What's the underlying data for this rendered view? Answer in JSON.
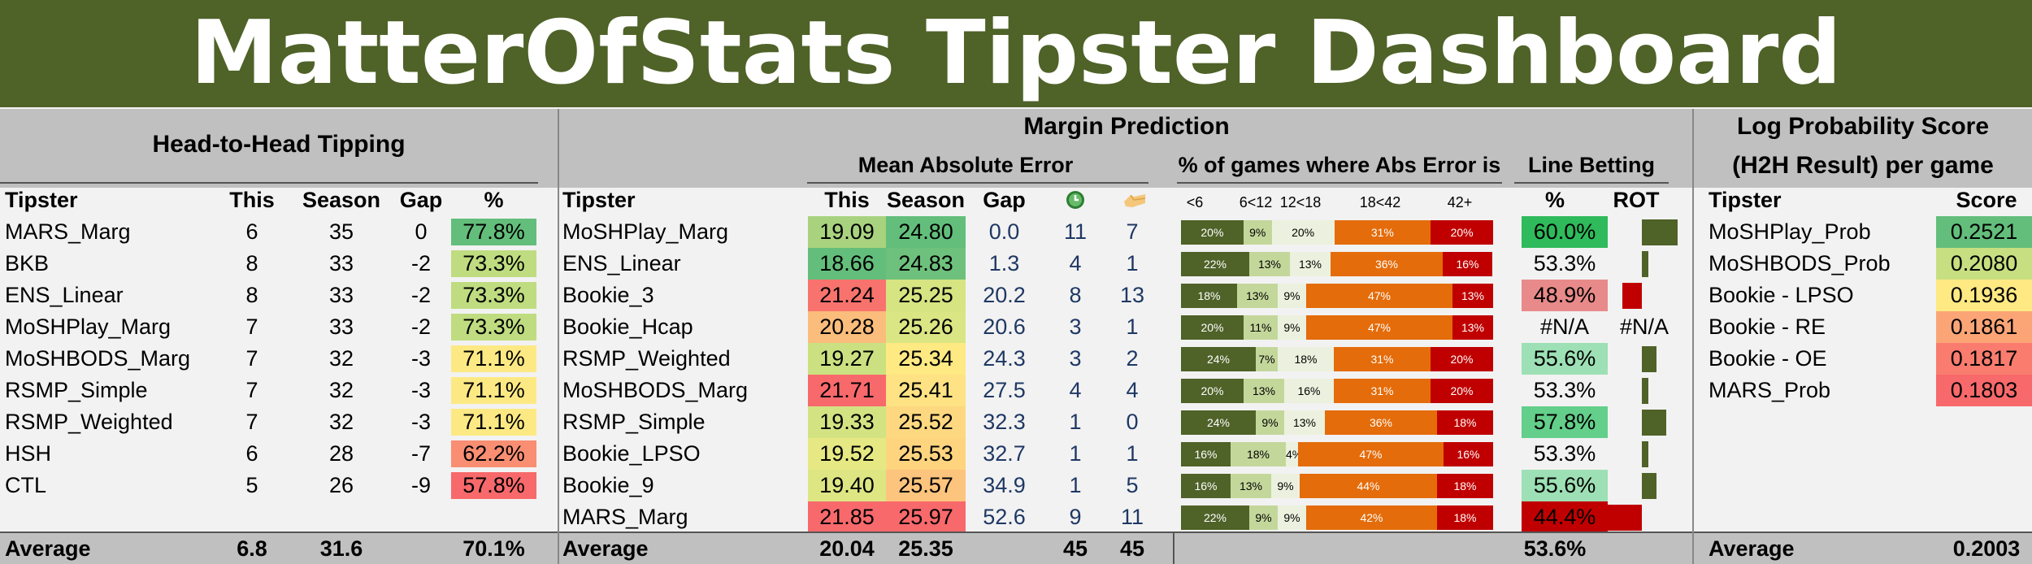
{
  "title": "MatterOfStats Tipster Dashboard",
  "colors": {
    "banner": "#4f6228",
    "band": "#c0c0c0",
    "dark_green": "#4f6228",
    "orange": "#e46c0a",
    "red": "#c00000"
  },
  "h2h": {
    "title": "Head-to-Head Tipping",
    "headers": {
      "tipster": "Tipster",
      "this": "This",
      "season": "Season",
      "gap": "Gap",
      "pct": "%"
    },
    "rows": [
      {
        "tipster": "MARS_Marg",
        "this": "6",
        "season": "35",
        "gap": "0",
        "pct": "77.8%",
        "color": "#63be7b"
      },
      {
        "tipster": "BKB",
        "this": "8",
        "season": "33",
        "gap": "-2",
        "pct": "73.3%",
        "color": "#bfdc80"
      },
      {
        "tipster": "ENS_Linear",
        "this": "8",
        "season": "33",
        "gap": "-2",
        "pct": "73.3%",
        "color": "#bfdc80"
      },
      {
        "tipster": "MoSHPlay_Marg",
        "this": "7",
        "season": "33",
        "gap": "-2",
        "pct": "73.3%",
        "color": "#bfdc80"
      },
      {
        "tipster": "MoSHBODS_Marg",
        "this": "7",
        "season": "32",
        "gap": "-3",
        "pct": "71.1%",
        "color": "#fde983"
      },
      {
        "tipster": "RSMP_Simple",
        "this": "7",
        "season": "32",
        "gap": "-3",
        "pct": "71.1%",
        "color": "#fde983"
      },
      {
        "tipster": "RSMP_Weighted",
        "this": "7",
        "season": "32",
        "gap": "-3",
        "pct": "71.1%",
        "color": "#fde983"
      },
      {
        "tipster": "HSH",
        "this": "6",
        "season": "28",
        "gap": "-7",
        "pct": "62.2%",
        "color": "#f98e72"
      },
      {
        "tipster": "CTL",
        "this": "5",
        "season": "26",
        "gap": "-9",
        "pct": "57.8%",
        "color": "#f8696b"
      }
    ],
    "average": {
      "label": "Average",
      "this": "6.8",
      "season": "31.6",
      "pct": "70.1%"
    }
  },
  "margin": {
    "title": "Margin Prediction",
    "mae_title": "Mean Absolute Error",
    "dist_title": "% of games where Abs Error is",
    "line_title": "Line Betting",
    "headers": {
      "tipster": "Tipster",
      "this": "This",
      "season": "Season",
      "gap": "Gap",
      "b1": "<6",
      "b2": "6<12",
      "b3": "12<18",
      "b4": "18<42",
      "b5": "42+",
      "pct": "%",
      "rot": "ROT"
    },
    "rows": [
      {
        "tipster": "MoSHPlay_Marg",
        "this": "19.09",
        "season": "24.80",
        "gap": "0.0",
        "c1": "11",
        "c2": "7",
        "dist": [
          "20%",
          "9%",
          "20%",
          "31%",
          "20%"
        ],
        "dist_v": [
          20,
          9,
          20,
          31,
          20
        ],
        "line_pct": "60.0%",
        "rot_v": 0.55,
        "this_color": "#a9d27f",
        "season_color": "#63be7b",
        "pct_color": "#2fba5b"
      },
      {
        "tipster": "ENS_Linear",
        "this": "18.66",
        "season": "24.83",
        "gap": "1.3",
        "c1": "4",
        "c2": "1",
        "dist": [
          "22%",
          "13%",
          "13%",
          "36%",
          "16%"
        ],
        "dist_v": [
          22,
          13,
          13,
          36,
          16
        ],
        "line_pct": "53.3%",
        "rot_v": 0.1,
        "this_color": "#63be7b",
        "season_color": "#6ec17c",
        "pct_color": ""
      },
      {
        "tipster": "Bookie_3",
        "this": "21.24",
        "season": "25.25",
        "gap": "20.2",
        "c1": "8",
        "c2": "13",
        "dist": [
          "18%",
          "13%",
          "9%",
          "47%",
          "13%"
        ],
        "dist_v": [
          18,
          13,
          9,
          47,
          13
        ],
        "line_pct": "48.9%",
        "rot_v": -0.3,
        "this_color": "#f8736d",
        "season_color": "#d6e482",
        "pct_color": "#e88a8a"
      },
      {
        "tipster": "Bookie_Hcap",
        "this": "20.28",
        "season": "25.26",
        "gap": "20.6",
        "c1": "3",
        "c2": "1",
        "dist": [
          "20%",
          "11%",
          "9%",
          "47%",
          "13%"
        ],
        "dist_v": [
          20,
          11,
          9,
          47,
          13
        ],
        "line_pct": "#N/A",
        "rot_text": "#N/A",
        "this_color": "#fbbd7b",
        "season_color": "#dae583",
        "pct_color": ""
      },
      {
        "tipster": "RSMP_Weighted",
        "this": "19.27",
        "season": "25.34",
        "gap": "24.3",
        "c1": "3",
        "c2": "2",
        "dist": [
          "24%",
          "7%",
          "18%",
          "31%",
          "20%"
        ],
        "dist_v": [
          24,
          7,
          18,
          31,
          20
        ],
        "line_pct": "55.6%",
        "rot_v": 0.22,
        "this_color": "#cbe181",
        "season_color": "#fee983",
        "pct_color": "#9de0b5"
      },
      {
        "tipster": "MoSHBODS_Marg",
        "this": "21.71",
        "season": "25.41",
        "gap": "27.5",
        "c1": "4",
        "c2": "4",
        "dist": [
          "20%",
          "13%",
          "16%",
          "31%",
          "20%"
        ],
        "dist_v": [
          20,
          13,
          16,
          31,
          20
        ],
        "line_pct": "53.3%",
        "rot_v": 0.1,
        "this_color": "#f8696b",
        "season_color": "#fee283",
        "pct_color": ""
      },
      {
        "tipster": "RSMP_Simple",
        "this": "19.33",
        "season": "25.52",
        "gap": "32.3",
        "c1": "1",
        "c2": "0",
        "dist": [
          "24%",
          "9%",
          "13%",
          "36%",
          "18%"
        ],
        "dist_v": [
          24,
          9,
          13,
          36,
          18
        ],
        "line_pct": "57.8%",
        "rot_v": 0.38,
        "this_color": "#d3e382",
        "season_color": "#fed880",
        "pct_color": "#63cf8a"
      },
      {
        "tipster": "Bookie_LPSO",
        "this": "19.52",
        "season": "25.53",
        "gap": "32.7",
        "c1": "1",
        "c2": "1",
        "dist": [
          "16%",
          "18%",
          "4%",
          "47%",
          "16%"
        ],
        "dist_v": [
          16,
          18,
          4,
          47,
          16
        ],
        "line_pct": "53.3%",
        "rot_v": 0.1,
        "this_color": "#e6e983",
        "season_color": "#fed47f",
        "pct_color": ""
      },
      {
        "tipster": "Bookie_9",
        "this": "19.40",
        "season": "25.57",
        "gap": "34.9",
        "c1": "1",
        "c2": "5",
        "dist": [
          "16%",
          "13%",
          "9%",
          "44%",
          "18%"
        ],
        "dist_v": [
          16,
          13,
          9,
          44,
          18
        ],
        "line_pct": "55.6%",
        "rot_v": 0.22,
        "this_color": "#dde683",
        "season_color": "#fdc47d",
        "pct_color": "#9de0b5"
      },
      {
        "tipster": "MARS_Marg",
        "this": "21.85",
        "season": "25.97",
        "gap": "52.6",
        "c1": "9",
        "c2": "11",
        "dist": [
          "22%",
          "9%",
          "9%",
          "42%",
          "18%"
        ],
        "dist_v": [
          22,
          9,
          9,
          42,
          18
        ],
        "line_pct": "44.4%",
        "rot_v": -0.62,
        "this_color": "#f8696b",
        "season_color": "#f8696b",
        "pct_color": "#c00000"
      }
    ],
    "average": {
      "label": "Average",
      "this": "20.04",
      "season": "25.35",
      "c1": "45",
      "c2": "45",
      "line_pct": "53.6%"
    }
  },
  "lps": {
    "title1": "Log Probability Score",
    "title2": "(H2H Result) per game",
    "headers": {
      "tipster": "Tipster",
      "score": "Score"
    },
    "rows": [
      {
        "tipster": "MoSHPlay_Prob",
        "score": "0.2521",
        "color": "#63be7b"
      },
      {
        "tipster": "MoSHBODS_Prob",
        "score": "0.2080",
        "color": "#c7df81"
      },
      {
        "tipster": "Bookie - LPSO",
        "score": "0.1936",
        "color": "#fee983"
      },
      {
        "tipster": "Bookie - RE",
        "score": "0.1861",
        "color": "#fba577"
      },
      {
        "tipster": "Bookie - OE",
        "score": "0.1817",
        "color": "#f97c6e"
      },
      {
        "tipster": "MARS_Prob",
        "score": "0.1803",
        "color": "#f8696b"
      }
    ],
    "average": {
      "label": "Average",
      "score": "0.2003"
    }
  }
}
